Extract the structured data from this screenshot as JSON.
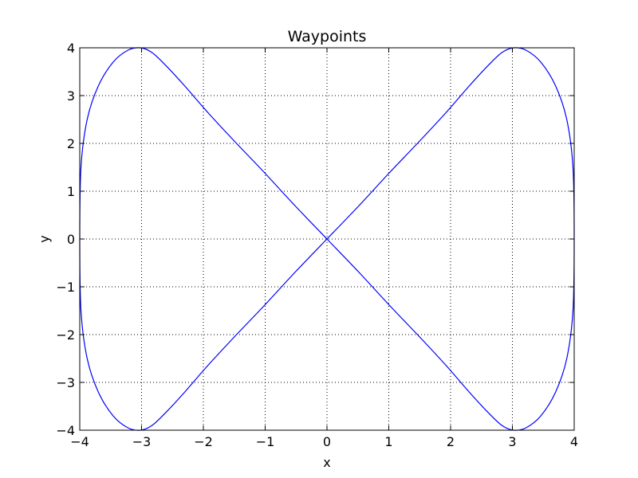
{
  "chart_data": {
    "type": "line",
    "title": "Waypoints",
    "xlabel": "x",
    "ylabel": "y",
    "xlim": [
      -4,
      4
    ],
    "ylim": [
      -4,
      4
    ],
    "grid": true,
    "legend": "none",
    "x_ticks": [
      -4,
      -3,
      -2,
      -1,
      0,
      1,
      2,
      3,
      4
    ],
    "y_ticks": [
      -4,
      -3,
      -2,
      -1,
      0,
      1,
      2,
      3,
      4
    ],
    "x_tick_labels": [
      "−4",
      "−3",
      "−2",
      "−1",
      "0",
      "1",
      "2",
      "3",
      "4"
    ],
    "y_tick_labels": [
      "−4",
      "−3",
      "−2",
      "−1",
      "0",
      "1",
      "2",
      "3",
      "4"
    ],
    "series": [
      {
        "color": "#0000ff",
        "x": [
          0,
          0.52,
          1.02,
          1.5,
          1.93,
          2.3,
          2.6,
          2.83,
          3.02,
          3.22,
          3.46,
          3.7,
          3.88,
          3.98,
          4.0,
          3.98,
          3.88,
          3.7,
          3.46,
          3.22,
          3.02,
          2.83,
          2.6,
          2.3,
          1.93,
          1.5,
          1.02,
          0.52,
          0,
          -0.52,
          -1.02,
          -1.5,
          -1.93,
          -2.3,
          -2.6,
          -2.83,
          -3.02,
          -3.22,
          -3.46,
          -3.7,
          -3.88,
          -3.98,
          -4.0,
          -3.98,
          -3.88,
          -3.7,
          -3.46,
          -3.22,
          -3.02,
          -2.83,
          -2.6,
          -2.3,
          -1.93,
          -1.5,
          -1.02,
          -0.52,
          0
        ],
        "y": [
          0,
          0.7,
          1.4,
          2.05,
          2.65,
          3.2,
          3.62,
          3.9,
          4.0,
          3.95,
          3.7,
          3.2,
          2.5,
          1.5,
          0,
          -1.5,
          -2.5,
          -3.2,
          -3.7,
          -3.95,
          -4.0,
          -3.9,
          -3.62,
          -3.2,
          -2.65,
          -2.05,
          -1.4,
          -0.7,
          0,
          0.7,
          1.4,
          2.05,
          2.65,
          3.2,
          3.62,
          3.9,
          4.0,
          3.95,
          3.7,
          3.2,
          2.5,
          1.5,
          0,
          -1.5,
          -2.5,
          -3.2,
          -3.7,
          -3.95,
          -4.0,
          -3.9,
          -3.62,
          -3.2,
          -2.65,
          -2.05,
          -1.4,
          -0.7,
          0
        ]
      }
    ]
  }
}
